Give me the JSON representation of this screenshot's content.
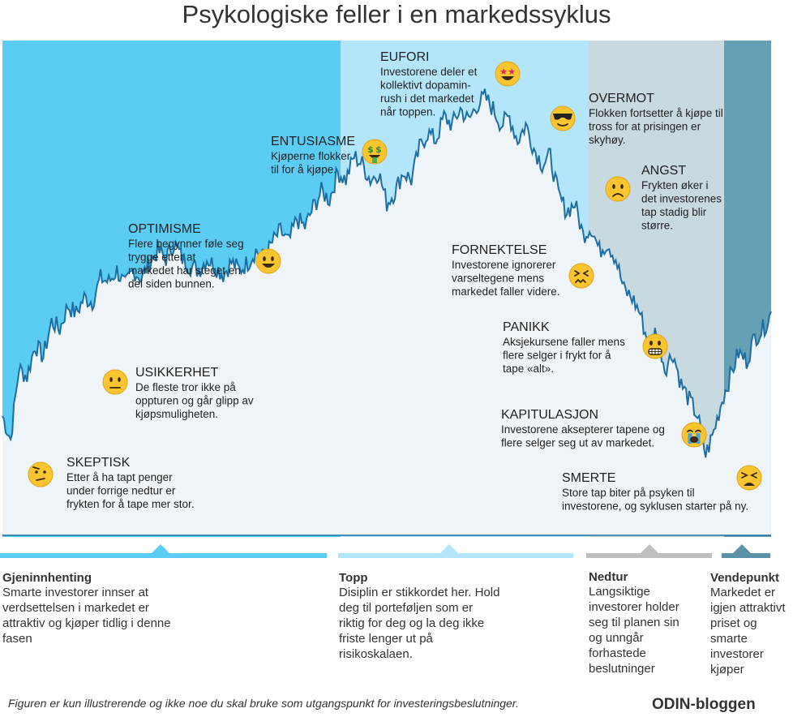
{
  "title": "Psykologiske feller i en markedssyklus",
  "chart_data": {
    "type": "area",
    "description_series": [
      0.18,
      0.12,
      0.3,
      0.28,
      0.36,
      0.33,
      0.42,
      0.4,
      0.46,
      0.44,
      0.48,
      0.47,
      0.53,
      0.52,
      0.55,
      0.51,
      0.55,
      0.53,
      0.57,
      0.6,
      0.58,
      0.62,
      0.58,
      0.56,
      0.55,
      0.58,
      0.56,
      0.54,
      0.57,
      0.55,
      0.57,
      0.6,
      0.58,
      0.62,
      0.65,
      0.62,
      0.68,
      0.66,
      0.71,
      0.75,
      0.73,
      0.8,
      0.78,
      0.84,
      0.82,
      0.78,
      0.8,
      0.72,
      0.75,
      0.8,
      0.78,
      0.86,
      0.9,
      0.88,
      0.94,
      0.92,
      0.96,
      0.93,
      0.97,
      0.99,
      0.96,
      0.92,
      0.94,
      0.88,
      0.92,
      0.86,
      0.82,
      0.84,
      0.74,
      0.7,
      0.72,
      0.64,
      0.66,
      0.6,
      0.62,
      0.58,
      0.5,
      0.48,
      0.44,
      0.36,
      0.4,
      0.3,
      0.34,
      0.26,
      0.22,
      0.18,
      0.08,
      0.14,
      0.22,
      0.28,
      0.34,
      0.32,
      0.38,
      0.4,
      0.44
    ],
    "stages": [
      {
        "name": "SKEPTISK",
        "text": [
          "Etter å ha tapt penger",
          "under forrige nedtur er",
          "frykten for å tape mer stor."
        ],
        "emoji": "skeptical-face-icon"
      },
      {
        "name": "USIKKERHET",
        "text": [
          "De fleste tror ikke på",
          "oppturen og går glipp av",
          "kjøpsmuligheten."
        ],
        "emoji": "neutral-face-icon"
      },
      {
        "name": "OPTIMISME",
        "text": [
          "Flere begynner føle seg",
          "trygge etter at",
          "markedet har steget en",
          "del siden bunnen."
        ],
        "emoji": "smiling-face-icon"
      },
      {
        "name": "ENTUSIASME",
        "text": [
          "Kjøperne flokker",
          "til for å kjøpe."
        ],
        "emoji": "money-face-icon"
      },
      {
        "name": "EUFORI",
        "text": [
          "Investorene deler et",
          "kollektivt dopamin-",
          "rush i det markedet",
          "når toppen."
        ],
        "emoji": "star-eyes-face-icon"
      },
      {
        "name": "OVERMOT",
        "text": [
          "Flokken fortsetter å kjøpe til",
          "tross for at prisingen er",
          "skyhøy."
        ],
        "emoji": "sunglasses-face-icon"
      },
      {
        "name": "FORNEKTELSE",
        "text": [
          "Investorene ignorerer",
          "varseltegene mens",
          "markedet faller videre."
        ],
        "emoji": "confounded-face-icon"
      },
      {
        "name": "ANGST",
        "text": [
          "Frykten øker i",
          "det investorenes",
          "tap stadig blir",
          "større."
        ],
        "emoji": "frowning-face-icon"
      },
      {
        "name": "PANIKK",
        "text": [
          "Aksjekursene faller mens",
          "flere selger i frykt for å",
          "tape «alt»."
        ],
        "emoji": "grimacing-face-icon"
      },
      {
        "name": "KAPITULASJON",
        "text": [
          "Investorene aksepterer tapene og",
          "flere selger seg ut av markedet."
        ],
        "emoji": "crying-face-icon"
      },
      {
        "name": "SMERTE",
        "text": [
          "Store tap biter på psyken til",
          "investorene, og syklusen starter på ny."
        ],
        "emoji": "tired-face-icon"
      }
    ],
    "phases": [
      {
        "name": "Gjeninnhenting",
        "text": [
          "Smarte investorer innser at",
          "verdsettelsen i markedet er",
          "attraktiv og kjøper tidlig i denne",
          "fasen"
        ],
        "color": "#5bcdf5"
      },
      {
        "name": "Topp",
        "text": [
          "Disiplin er stikkordet her. Hold",
          "deg til porteføljen som er",
          "riktig for deg og la deg ikke",
          "friste lenger ut på",
          "risikoskalaen."
        ],
        "color": "#b3e6fb"
      },
      {
        "name": "Nedtur",
        "text": [
          "Langsiktige",
          "investorer holder",
          "seg til planen sin",
          "og unngår",
          "forhastede",
          "beslutninger"
        ],
        "color": "#bfbfbf"
      },
      {
        "name": "Vendepunkt",
        "text": [
          "Markedet er",
          "igjen attraktivt",
          "priset og",
          "smarte",
          "investorer",
          "kjøper"
        ],
        "color": "#5b92a8"
      }
    ],
    "colors": {
      "line": "#1d6ea3",
      "area": "#eef4f7",
      "zone1": "#5bcdf5",
      "zone2": "#b3e6fb",
      "zone3": "#c8d9e0",
      "zone4": "#66a0b5"
    }
  },
  "footnote": "Figuren er kun illustrerende og ikke noe du skal bruke som utgangspunkt for investeringsbeslutninger.",
  "brand": "ODIN-bloggen"
}
